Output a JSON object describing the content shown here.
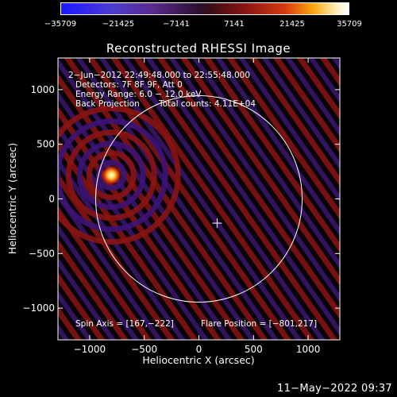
{
  "colorbar": {
    "ticks": [
      "−35709",
      "−21425",
      "−7141",
      "7141",
      "21425",
      "35709"
    ]
  },
  "title": "Reconstructed RHESSI Image",
  "info": {
    "line1": "2−Jun−2012 22:49:48.000 to 22:55:48.000",
    "line2": "Detectors: 7F 8F 9F, Att 0",
    "line3": "Energy Range: 6.0 − 12.0 keV",
    "line4_method": "Back Projection",
    "line4_counts": "Total counts: 4.11E+04"
  },
  "spin_axis": "Spin Axis = [167,−222]",
  "flare_position": "Flare Position = [−801,217]",
  "axes": {
    "xlabel": "Heliocentric X (arcsec)",
    "ylabel": "Heliocentric Y (arcsec)",
    "xlim": [
      -1290,
      1290
    ],
    "ylim": [
      -1290,
      1290
    ],
    "xticks": [
      -1000,
      -500,
      0,
      500,
      1000
    ],
    "yticks": [
      -1000,
      -500,
      0,
      500,
      1000
    ],
    "xtick_labels": [
      "−1000",
      "−500",
      "0",
      "500",
      "1000"
    ],
    "ytick_labels": [
      "−1000",
      "−500",
      "0",
      "500",
      "1000"
    ]
  },
  "solar_disk": {
    "center": [
      0,
      0
    ],
    "radius_arcsec": 945
  },
  "spin_axis_marker": [
    167,
    -222
  ],
  "flare_source": [
    -801,
    217
  ],
  "footer_date": "11−May−2022 09:37"
}
